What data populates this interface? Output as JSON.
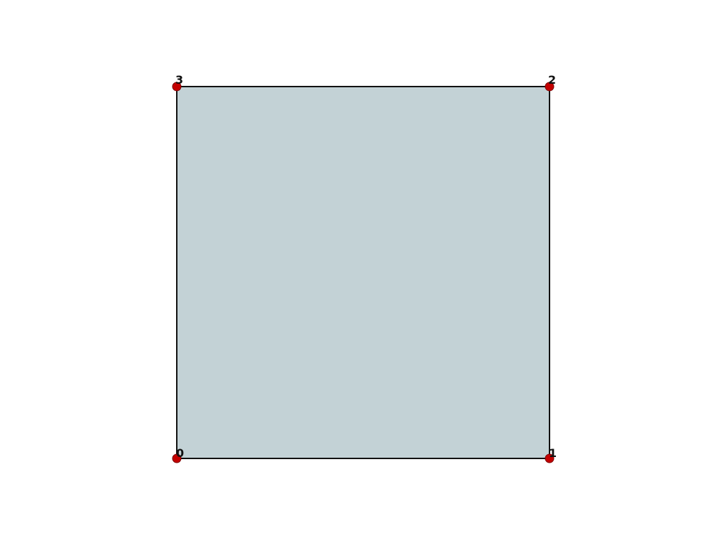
{
  "mesh": {
    "fill_color": "#c3d2d6",
    "edge_color": "#111111",
    "vertex_color": "#c40000",
    "vertex_edge_color": "#7a0000",
    "vertices": [
      {
        "label": "0"
      },
      {
        "label": "1"
      },
      {
        "label": "2"
      },
      {
        "label": "3"
      }
    ]
  }
}
